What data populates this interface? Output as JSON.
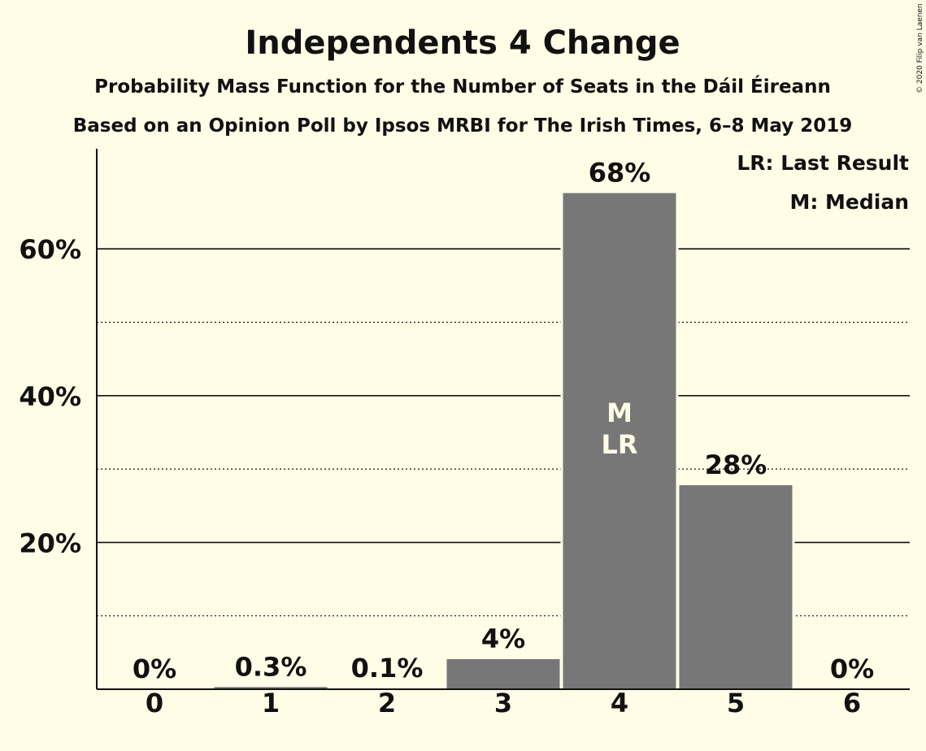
{
  "chart_data": {
    "type": "bar",
    "title": "Independents 4 Change",
    "subtitle": "Probability Mass Function for the Number of Seats in the Dáil Éireann",
    "subtitle2": "Based on an Opinion Poll by Ipsos MRBI for The Irish Times, 6–8 May 2019",
    "categories": [
      "0",
      "1",
      "2",
      "3",
      "4",
      "5",
      "6"
    ],
    "values": [
      0,
      0.3,
      0.1,
      4.1,
      67.6,
      27.8,
      0
    ],
    "data_labels": [
      "0%",
      "0.3%",
      "0.1%",
      "4%",
      "68%",
      "28%",
      "0%"
    ],
    "ylim": [
      0,
      73
    ],
    "yticks_major": [
      20,
      40,
      60
    ],
    "ytick_labels": [
      "20%",
      "40%",
      "60%"
    ],
    "yticks_minor": [
      10,
      30,
      50
    ],
    "grid": true,
    "bar_color": "#777777",
    "background_color": "#FFFDE6",
    "median_index": 4,
    "last_result_index": 4,
    "median_marker": "M",
    "last_result_marker": "LR",
    "legend": {
      "placement": "top-right",
      "items": [
        "LR: Last Result",
        "M: Median"
      ]
    },
    "copyright": "© 2020 Filip van Laenen"
  }
}
